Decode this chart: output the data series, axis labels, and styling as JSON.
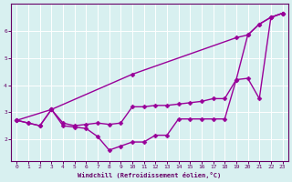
{
  "xlabel": "Windchill (Refroidissement éolien,°C)",
  "ylabel": "",
  "background_color": "#d8f0f0",
  "grid_color": "#ffffff",
  "line_color": "#990099",
  "xlim": [
    -0.5,
    23.5
  ],
  "ylim": [
    1.2,
    7.0
  ],
  "xticks": [
    0,
    1,
    2,
    3,
    4,
    5,
    6,
    7,
    8,
    9,
    10,
    11,
    12,
    13,
    14,
    15,
    16,
    17,
    18,
    19,
    20,
    21,
    22,
    23
  ],
  "yticks": [
    2,
    3,
    4,
    5,
    6
  ],
  "series": [
    {
      "x": [
        0,
        1,
        2,
        3,
        4,
        5,
        6,
        7,
        8,
        9,
        10,
        11,
        12,
        13,
        14,
        15,
        16,
        17,
        18,
        19,
        20,
        21,
        22,
        23
      ],
      "y": [
        2.7,
        2.6,
        2.5,
        3.1,
        2.5,
        2.45,
        2.4,
        2.1,
        1.6,
        1.75,
        1.9,
        1.9,
        2.15,
        2.15,
        2.75,
        2.75,
        2.75,
        2.75,
        2.75,
        4.2,
        5.85,
        6.25,
        6.5,
        6.65
      ],
      "marker": "D",
      "markersize": 2.5,
      "linewidth": 1.0
    },
    {
      "x": [
        0,
        1,
        2,
        3,
        4,
        5,
        6,
        7,
        8,
        9,
        10,
        11,
        12,
        13,
        14,
        15,
        16,
        17,
        18,
        19,
        20,
        21,
        22,
        23
      ],
      "y": [
        2.7,
        2.6,
        2.5,
        3.1,
        2.6,
        2.5,
        2.55,
        2.6,
        2.55,
        2.6,
        3.2,
        3.2,
        3.25,
        3.25,
        3.3,
        3.35,
        3.4,
        3.5,
        3.5,
        4.2,
        4.25,
        3.5,
        6.5,
        6.65
      ],
      "marker": "D",
      "markersize": 2.5,
      "linewidth": 1.0
    },
    {
      "x": [
        0,
        3,
        10,
        19,
        20,
        21,
        22,
        23
      ],
      "y": [
        2.7,
        3.1,
        4.4,
        5.75,
        5.85,
        6.25,
        6.5,
        6.65
      ],
      "marker": "D",
      "markersize": 2.5,
      "linewidth": 1.0
    }
  ]
}
